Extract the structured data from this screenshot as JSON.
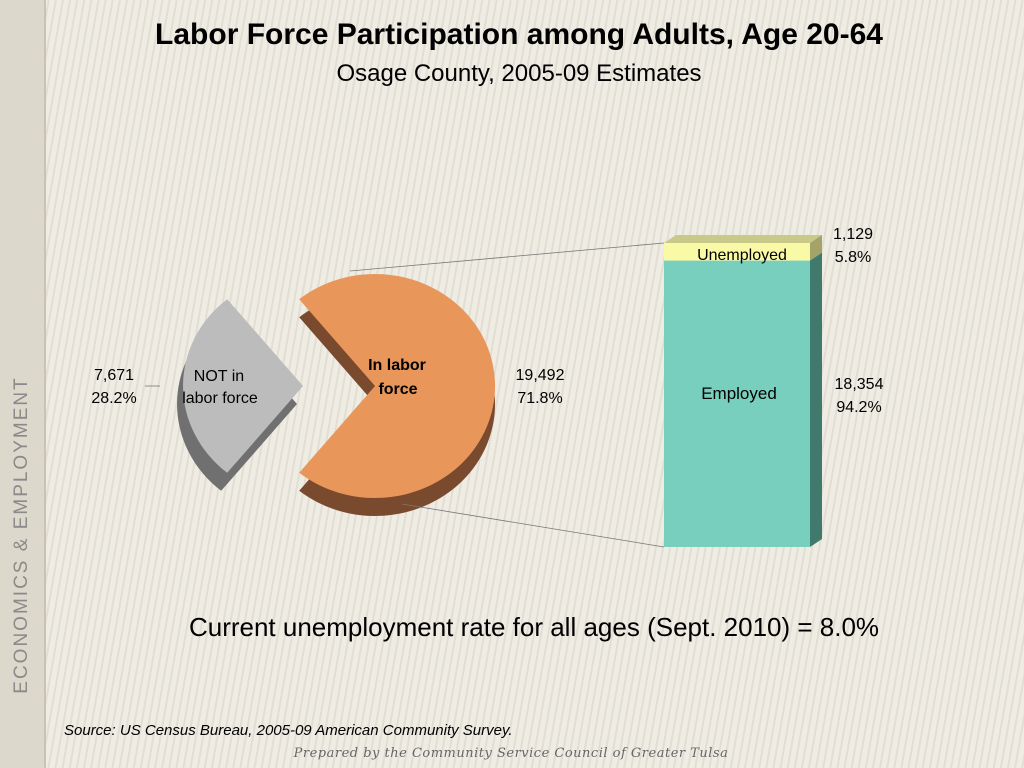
{
  "sidebar": {
    "label": "ECONOMICS & EMPLOYMENT"
  },
  "chart_data": {
    "type": "pie",
    "title": "Labor Force Participation among Adults, Age 20-64",
    "subtitle": "Osage County, 2005-09 Estimates",
    "pie": {
      "slices": [
        {
          "label_line1": "In labor",
          "label_line2": "force",
          "value": 19492,
          "value_text": "19,492",
          "percent": "71.8%",
          "color": "#e8965a",
          "side": "#7a4a2e"
        },
        {
          "label_line1": "NOT in",
          "label_line2": "labor force",
          "value": 7671,
          "value_text": "7,671",
          "percent": "28.2%",
          "color": "#bcbcbc",
          "side": "#707070"
        }
      ]
    },
    "breakdown": {
      "of": "In labor force",
      "segments": [
        {
          "label": "Employed",
          "value": 18354,
          "value_text": "18,354",
          "percent": "94.2%",
          "color": "#78cfbd",
          "side": "#3f7a6d"
        },
        {
          "label": "Unemployed",
          "value": 1129,
          "value_text": "1,129",
          "percent": "5.8%",
          "color": "#fafaa6",
          "side": "#a3a36a"
        }
      ]
    }
  },
  "note": "Current unemployment rate for all ages (Sept. 2010) = 8.0%",
  "source": "Source:  US Census Bureau, 2005-09 American Community Survey.",
  "footer": "Prepared by the Community Service Council of Greater Tulsa"
}
